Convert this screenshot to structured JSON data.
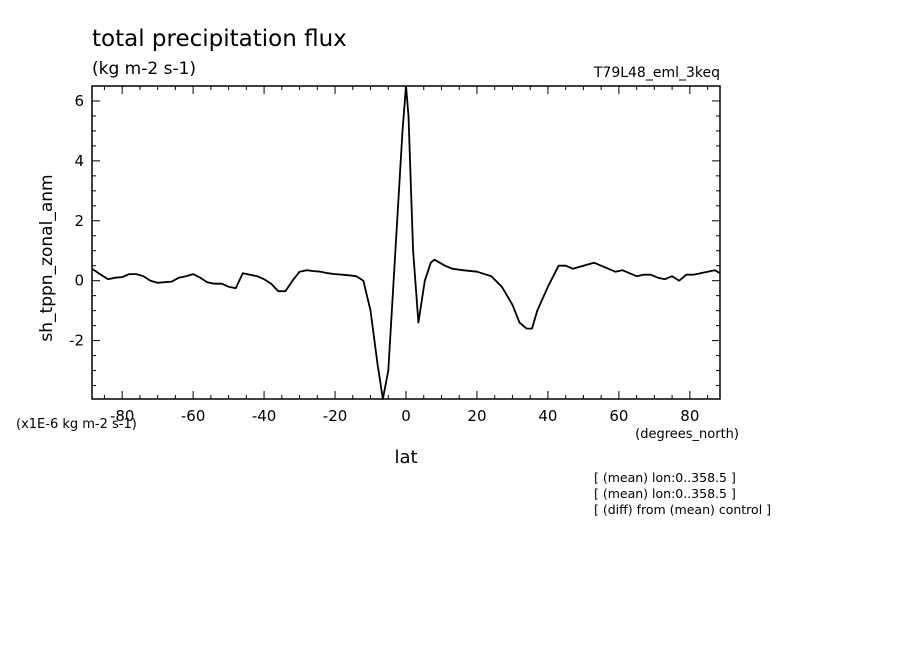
{
  "chart_data": {
    "type": "line",
    "title": "total precipitation flux",
    "subtitle": "(kg m-2 s-1)",
    "experiment": "T79L48_eml_3keq",
    "xlabel": "lat",
    "xunits": "(degrees_north)",
    "ylabel": "sh_tppn_zonal_anm",
    "yscale_note": "(x1E-6 kg m-2 s-1)",
    "xlim": [
      -88.5,
      88.5
    ],
    "ylim": [
      -3.95,
      6.5
    ],
    "xticks": [
      -80,
      -60,
      -40,
      -20,
      0,
      20,
      40,
      60,
      80
    ],
    "yticks": [
      -2,
      0,
      2,
      4,
      6
    ],
    "xtick_labels": [
      "-80",
      "-60",
      "-40",
      "-20",
      "0",
      "20",
      "40",
      "60",
      "80"
    ],
    "ytick_labels": [
      "-2",
      "0",
      "2",
      "4",
      "6"
    ],
    "annotations": [
      "[ (mean) lon:0..358.5 ]",
      "[ (mean) lon:0..358.5 ]",
      "[ (diff) from (mean) control ]"
    ],
    "grid": false,
    "series": [
      {
        "x": [
          -88.5,
          -86,
          -84,
          -82,
          -80,
          -78,
          -76,
          -74,
          -72,
          -70,
          -68,
          -66,
          -64,
          -62,
          -60,
          -58,
          -56,
          -54,
          -52,
          -50,
          -48,
          -46,
          -44,
          -42,
          -40,
          -38,
          -36,
          -34,
          -32,
          -30,
          -28,
          -26,
          -24,
          -22,
          -20,
          -18,
          -16,
          -14,
          -12,
          -10,
          -8,
          -6.5,
          -5,
          -3,
          -1,
          0,
          0.7,
          2,
          3.5,
          5.3,
          7,
          8,
          9.5,
          11,
          13,
          16,
          20,
          24,
          27,
          30,
          32,
          34,
          35.5,
          37,
          40,
          43,
          45,
          47,
          50,
          53,
          55,
          57,
          59,
          61,
          63,
          65,
          67,
          69,
          71,
          73,
          75,
          77,
          79,
          81,
          83,
          85,
          87,
          88.5
        ],
        "values": [
          0.4,
          0.2,
          0.05,
          0.1,
          0.12,
          0.22,
          0.22,
          0.15,
          0.0,
          -0.07,
          -0.05,
          -0.03,
          0.1,
          0.15,
          0.22,
          0.1,
          -0.05,
          -0.1,
          -0.1,
          -0.2,
          -0.25,
          0.25,
          0.2,
          0.15,
          0.05,
          -0.1,
          -0.35,
          -0.35,
          0.0,
          0.3,
          0.35,
          0.32,
          0.3,
          0.25,
          0.22,
          0.2,
          0.18,
          0.15,
          0.0,
          -1.0,
          -2.8,
          -3.95,
          -3.0,
          1.0,
          5.0,
          6.5,
          5.5,
          1.0,
          -1.4,
          0.0,
          0.6,
          0.7,
          0.6,
          0.5,
          0.4,
          0.35,
          0.3,
          0.15,
          -0.2,
          -0.8,
          -1.4,
          -1.6,
          -1.6,
          -1.0,
          -0.2,
          0.5,
          0.5,
          0.4,
          0.5,
          0.6,
          0.5,
          0.4,
          0.3,
          0.35,
          0.25,
          0.15,
          0.2,
          0.2,
          0.1,
          0.05,
          0.15,
          0.0,
          0.2,
          0.2,
          0.25,
          0.3,
          0.35,
          0.25
        ],
        "color": "#000000"
      }
    ]
  }
}
